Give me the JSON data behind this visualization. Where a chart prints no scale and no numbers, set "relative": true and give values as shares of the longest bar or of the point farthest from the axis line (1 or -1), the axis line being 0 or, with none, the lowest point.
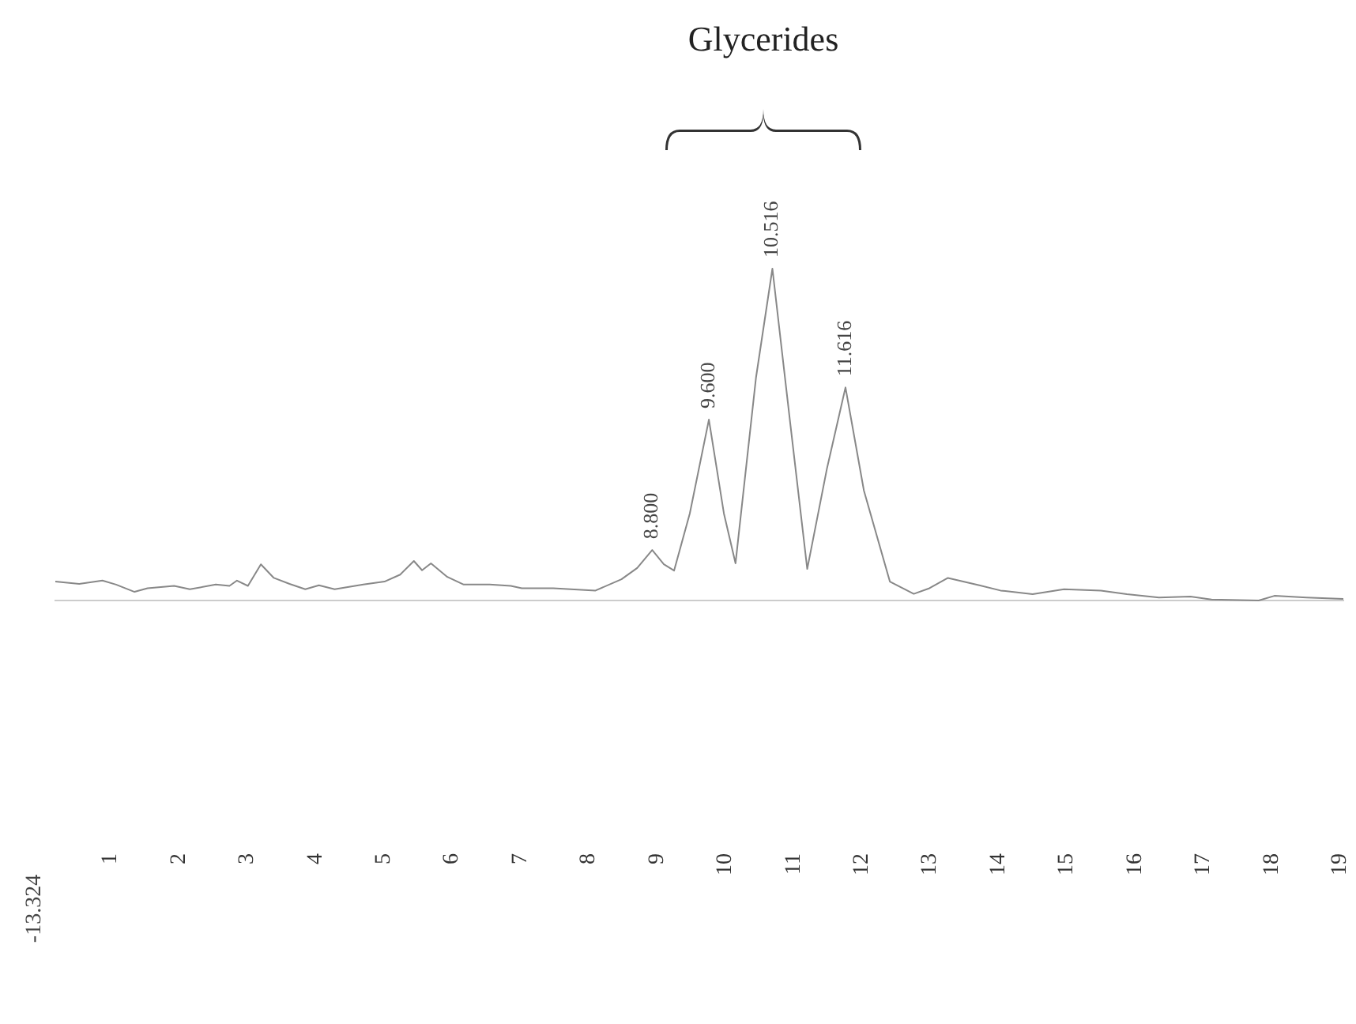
{
  "chart_data": {
    "type": "line",
    "title": "Glycerides",
    "relative": true,
    "xlim": [
      0.19,
      19.05
    ],
    "xticks": [
      1,
      2,
      3,
      4,
      5,
      6,
      7,
      8,
      9,
      10,
      11,
      12,
      13,
      14,
      15,
      16,
      17,
      18,
      19
    ],
    "grid": false,
    "legend": false,
    "marker": "none",
    "line_style": "solid",
    "series": [
      {
        "color": "#888888",
        "x": [
          0.19,
          0.54,
          0.88,
          1.08,
          1.35,
          1.54,
          1.93,
          2.16,
          2.54,
          2.74,
          2.85,
          3.01,
          3.2,
          3.39,
          3.62,
          3.85,
          4.05,
          4.28,
          4.7,
          5.01,
          5.24,
          5.44,
          5.56,
          5.69,
          5.93,
          6.17,
          6.55,
          6.86,
          7.02,
          7.48,
          8.1,
          8.48,
          8.71,
          8.93,
          9.1,
          9.25,
          9.48,
          9.76,
          9.98,
          10.15,
          10.45,
          10.69,
          10.95,
          11.2,
          11.49,
          11.76,
          12.03,
          12.41,
          12.76,
          12.99,
          13.26,
          13.72,
          14.03,
          14.5,
          14.96,
          15.5,
          15.88,
          16.35,
          16.81,
          17.12,
          17.81,
          18.04,
          18.51,
          19.05
        ],
        "values": [
          0.057,
          0.05,
          0.06,
          0.048,
          0.026,
          0.037,
          0.044,
          0.034,
          0.048,
          0.044,
          0.06,
          0.044,
          0.109,
          0.068,
          0.05,
          0.034,
          0.046,
          0.034,
          0.048,
          0.057,
          0.078,
          0.119,
          0.091,
          0.112,
          0.071,
          0.048,
          0.048,
          0.044,
          0.037,
          0.037,
          0.03,
          0.064,
          0.098,
          0.152,
          0.109,
          0.09,
          0.262,
          0.545,
          0.262,
          0.112,
          0.672,
          1,
          0.536,
          0.095,
          0.399,
          0.642,
          0.331,
          0.057,
          0.02,
          0.037,
          0.068,
          0.046,
          0.03,
          0.019,
          0.034,
          0.03,
          0.019,
          0.009,
          0.012,
          0.003,
          0,
          0.014,
          0.009,
          0.005
        ]
      }
    ],
    "annotations": [
      {
        "text": "8.800",
        "x": 8.93,
        "y": 0.152
      },
      {
        "text": "9.600",
        "x": 9.76,
        "y": 0.545
      },
      {
        "text": "10.516",
        "x": 10.69,
        "y": 1
      },
      {
        "text": "11.616",
        "x": 11.76,
        "y": 0.642
      },
      "-13.324"
    ]
  }
}
